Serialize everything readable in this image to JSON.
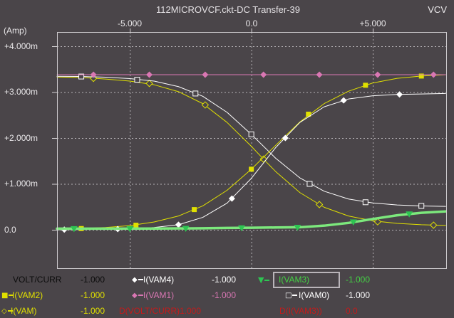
{
  "window": {
    "title": "112MICROVCF.ckt-DC Transfer-39",
    "corner_label": "VCV",
    "y_unit_label": "(Amp)"
  },
  "axes": {
    "x_ticks": [
      "-5.000",
      "0.0",
      "+5.000"
    ],
    "y_ticks": [
      "+4.000m",
      "+3.000m",
      "+2.000m",
      "+1.000m",
      "0.0"
    ]
  },
  "palette": {
    "background": "#4a4549",
    "grid": "#c9c6c9",
    "border": "#cdcacd",
    "yellow": "#e0e000",
    "white": "#ffffff",
    "pink": "#d977b3",
    "green_line": "#7ce87c",
    "green_marker": "#2ec452",
    "green_text": "#44d044",
    "red_text": "#c61a1a",
    "black_text": "#0b0b0b"
  },
  "chart_data": {
    "type": "line",
    "title": "112MICROVCF.ckt-DC Transfer-39",
    "xlabel": "VOLT/CURR",
    "ylabel": "(Amp)",
    "y_unit": "mA",
    "xlim": [
      -8,
      8.05
    ],
    "ylim_mA": [
      -0.853,
      4.31
    ],
    "x_gridlines": [
      -5,
      0,
      5
    ],
    "y_gridlines_mA": [
      0,
      1,
      2,
      3,
      4
    ],
    "x_tick_labels": [
      "-5.000",
      "0.0",
      "+5.000"
    ],
    "y_tick_labels": [
      "+4.000m",
      "+3.000m",
      "+2.000m",
      "+1.000m",
      "0.0"
    ],
    "legend_position": "bottom",
    "grid": true,
    "series": [
      {
        "name": "I(VAM)",
        "color": "#e0e000",
        "width": 1,
        "marker": "open-diamond",
        "points": [
          [
            -8,
            3.33
          ],
          [
            -7,
            3.32
          ],
          [
            -6,
            3.285
          ],
          [
            -5,
            3.24
          ],
          [
            -4,
            3.16
          ],
          [
            -3,
            3.01
          ],
          [
            -2,
            2.75
          ],
          [
            -1,
            2.34
          ],
          [
            0,
            1.82
          ],
          [
            0.5,
            1.54
          ],
          [
            1,
            1.27
          ],
          [
            2,
            0.81
          ],
          [
            3,
            0.49
          ],
          [
            4,
            0.3
          ],
          [
            5,
            0.195
          ],
          [
            6,
            0.14
          ],
          [
            7,
            0.11
          ],
          [
            8,
            0.095
          ]
        ],
        "marker_points": [
          [
            -6.5,
            3.3
          ],
          [
            -4.2,
            3.19
          ],
          [
            -1.9,
            2.72
          ],
          [
            0.5,
            1.54
          ],
          [
            2.8,
            0.55
          ],
          [
            5.2,
            0.175
          ],
          [
            7.5,
            0.1
          ]
        ]
      },
      {
        "name": "I(VAM0)",
        "color": "#ffffff",
        "width": 1,
        "marker": "open-square",
        "points": [
          [
            -8,
            3.345
          ],
          [
            -7,
            3.34
          ],
          [
            -6,
            3.325
          ],
          [
            -5,
            3.295
          ],
          [
            -4,
            3.24
          ],
          [
            -3,
            3.12
          ],
          [
            -2,
            2.91
          ],
          [
            -1,
            2.56
          ],
          [
            0,
            2.08
          ],
          [
            1,
            1.56
          ],
          [
            2,
            1.13
          ],
          [
            3,
            0.84
          ],
          [
            4,
            0.67
          ],
          [
            5,
            0.585
          ],
          [
            6,
            0.54
          ],
          [
            7,
            0.52
          ],
          [
            8,
            0.51
          ]
        ],
        "marker_points": [
          [
            -7,
            3.34
          ],
          [
            -4.7,
            3.27
          ],
          [
            -2.3,
            2.97
          ],
          [
            0,
            2.08
          ],
          [
            2.4,
            1.0
          ],
          [
            4.7,
            0.6
          ],
          [
            7,
            0.52
          ]
        ]
      },
      {
        "name": "I(VAM2)",
        "color": "#e0e000",
        "width": 1,
        "marker": "filled-square",
        "points": [
          [
            -8,
            0.014
          ],
          [
            -7,
            0.027
          ],
          [
            -6,
            0.05
          ],
          [
            -5,
            0.09
          ],
          [
            -4,
            0.17
          ],
          [
            -3,
            0.3
          ],
          [
            -2,
            0.52
          ],
          [
            -1,
            0.86
          ],
          [
            0,
            1.32
          ],
          [
            1,
            1.84
          ],
          [
            2,
            2.35
          ],
          [
            3,
            2.75
          ],
          [
            4,
            3.02
          ],
          [
            5,
            3.2
          ],
          [
            6,
            3.3
          ],
          [
            7,
            3.35
          ],
          [
            8,
            3.38
          ]
        ],
        "marker_points": [
          [
            -7,
            0.027
          ],
          [
            -4.75,
            0.1
          ],
          [
            -2.35,
            0.44
          ],
          [
            0,
            1.32
          ],
          [
            2.35,
            2.52
          ],
          [
            4.7,
            3.15
          ],
          [
            7,
            3.35
          ]
        ]
      },
      {
        "name": "I(VAM4)",
        "color": "#ffffff",
        "width": 1,
        "marker": "filled-diamond",
        "points": [
          [
            -8,
            0.0
          ],
          [
            -7,
            0.005
          ],
          [
            -6,
            0.01
          ],
          [
            -5,
            0.02
          ],
          [
            -4,
            0.05
          ],
          [
            -3,
            0.11
          ],
          [
            -2,
            0.27
          ],
          [
            -1,
            0.58
          ],
          [
            0,
            1.12
          ],
          [
            1,
            1.79
          ],
          [
            2,
            2.34
          ],
          [
            3,
            2.68
          ],
          [
            4,
            2.85
          ],
          [
            5,
            2.92
          ],
          [
            6,
            2.95
          ],
          [
            7,
            2.96
          ],
          [
            8,
            2.97
          ]
        ],
        "marker_points": [
          [
            -7.7,
            0.003
          ],
          [
            -5.5,
            0.015
          ],
          [
            -3,
            0.11
          ],
          [
            -0.8,
            0.68
          ],
          [
            1.4,
            2.0
          ],
          [
            3.8,
            2.82
          ],
          [
            6.1,
            2.95
          ]
        ]
      },
      {
        "name": "I(VAM3)",
        "color": "#7ce87c",
        "width": 3.5,
        "marker": "triangle-down",
        "marker_color": "#2ec452",
        "points": [
          [
            -8,
            0.025
          ],
          [
            -6,
            0.025
          ],
          [
            -4,
            0.027
          ],
          [
            -2,
            0.032
          ],
          [
            -1,
            0.04
          ],
          [
            0,
            0.045
          ],
          [
            1,
            0.05
          ],
          [
            2,
            0.055
          ],
          [
            3,
            0.09
          ],
          [
            4,
            0.15
          ],
          [
            5,
            0.235
          ],
          [
            6,
            0.315
          ],
          [
            7,
            0.37
          ],
          [
            8,
            0.4
          ]
        ],
        "marker_points": [
          [
            -7.3,
            0.025
          ],
          [
            -5.0,
            0.025
          ],
          [
            -2.7,
            0.03
          ],
          [
            -0.4,
            0.042
          ],
          [
            1.9,
            0.054
          ],
          [
            4.2,
            0.17
          ],
          [
            6.5,
            0.345
          ]
        ]
      },
      {
        "name": "I(VAM1)",
        "color": "#d977b3",
        "width": 1,
        "marker": "filled-diamond",
        "points": [
          [
            -8,
            3.38
          ],
          [
            8,
            3.38
          ]
        ],
        "marker_points": [
          [
            -6.5,
            3.38
          ],
          [
            -4.2,
            3.38
          ],
          [
            -1.9,
            3.38
          ],
          [
            0.5,
            3.38
          ],
          [
            2.8,
            3.38
          ],
          [
            5.2,
            3.38
          ],
          [
            7.5,
            3.38
          ]
        ]
      }
    ]
  },
  "legend": {
    "rows": [
      {
        "cells": [
          {
            "marker": "none",
            "label": "VOLT/CURR",
            "value": "-1.000",
            "color": "black"
          },
          {
            "marker": "filled-diamond",
            "label": "I(VAM4)",
            "value": "-1.000",
            "color": "white"
          },
          {
            "marker": "triangle-down",
            "label": "I(VAM3)",
            "value": "-1.000",
            "color": "green",
            "selected": true
          }
        ]
      },
      {
        "cells": [
          {
            "marker": "filled-square",
            "label": "I(VAM2)",
            "value": "-1.000",
            "color": "yellow"
          },
          {
            "marker": "filled-diamond",
            "label": "I(VAM1)",
            "value": "-1.000",
            "color": "pink"
          },
          {
            "marker": "open-square",
            "label": "I(VAM0)",
            "value": "-1.000",
            "color": "white"
          }
        ]
      },
      {
        "cells": [
          {
            "marker": "open-diamond",
            "label": "I(VAM)",
            "value": "-1.000",
            "color": "yellow"
          },
          {
            "marker": "none",
            "label": "D(VOLT/CURR)",
            "value": "-1.000",
            "color": "red"
          },
          {
            "marker": "none",
            "label": "D(I(VAM3))",
            "value": "0.0",
            "color": "red"
          }
        ]
      }
    ]
  }
}
